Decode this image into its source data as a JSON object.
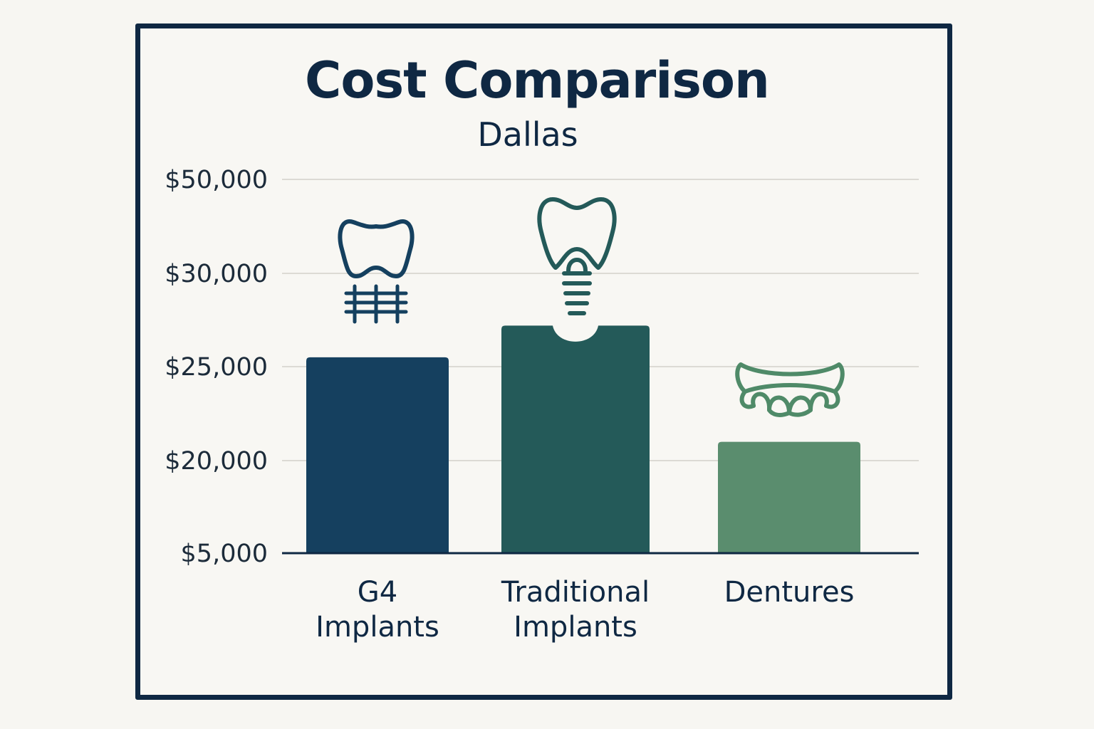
{
  "chart_data": {
    "type": "bar",
    "title": "Cost Comparison",
    "subtitle": "Dallas",
    "xlabel": "",
    "ylabel": "",
    "y_ticks": [
      "$50,000",
      "$30,000",
      "$25,000",
      "$20,000",
      "$5,000"
    ],
    "categories": [
      [
        "G4",
        "Implants"
      ],
      [
        "Traditional",
        "Implants"
      ],
      [
        "Dentures"
      ]
    ],
    "values": [
      25500,
      27200,
      21000
    ],
    "grid": true,
    "legend": "none",
    "colors": [
      "#15405f",
      "#245a59",
      "#5a8d6e"
    ],
    "icons": [
      "implant-bridge-icon",
      "single-implant-tooth-icon",
      "denture-icon"
    ]
  },
  "colors": {
    "frame": "#0f2843",
    "background": "#f8f7f3",
    "text": "#0f2843",
    "icon_g4": "#15405f",
    "icon_traditional": "#245a59",
    "icon_dentures": "#4f8a68"
  }
}
